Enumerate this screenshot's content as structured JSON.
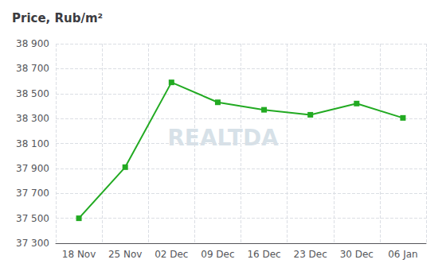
{
  "chart_data": {
    "type": "line",
    "title": "Price, Rub/m²",
    "categories": [
      "18 Nov",
      "25 Nov",
      "02 Dec",
      "09 Dec",
      "16 Dec",
      "23 Dec",
      "30 Dec",
      "06 Jan"
    ],
    "values": [
      37500,
      37910,
      38590,
      38430,
      38370,
      38330,
      38420,
      38305
    ],
    "color": "#22aa22",
    "marker": "square",
    "ylim": [
      37300,
      38900
    ],
    "yticks": [
      {
        "value": 37300,
        "label": "37 300"
      },
      {
        "value": 37500,
        "label": "37 500"
      },
      {
        "value": 37700,
        "label": "37 700"
      },
      {
        "value": 37900,
        "label": "37 900"
      },
      {
        "value": 38100,
        "label": "38 100"
      },
      {
        "value": 38300,
        "label": "38 300"
      },
      {
        "value": 38500,
        "label": "38 500"
      },
      {
        "value": 38700,
        "label": "38 700"
      },
      {
        "value": 38900,
        "label": "38 900"
      }
    ],
    "grid": true,
    "annotations": [
      "REALTDA"
    ]
  }
}
